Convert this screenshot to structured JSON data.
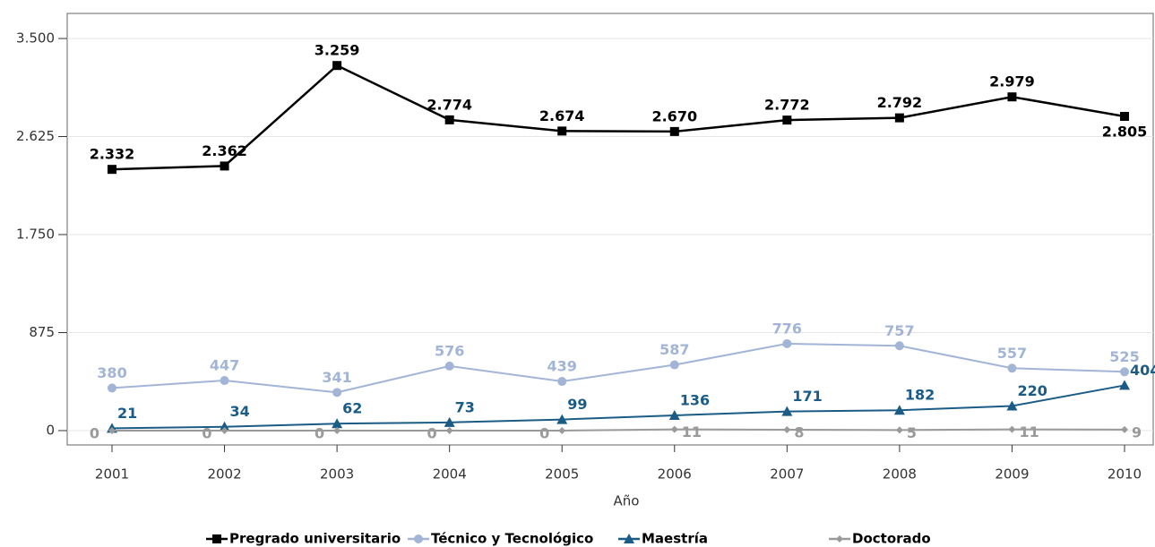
{
  "chart_data": {
    "type": "line",
    "x_label": "Año",
    "categories": [
      "2001",
      "2002",
      "2003",
      "2004",
      "2005",
      "2006",
      "2007",
      "2008",
      "2009",
      "2010"
    ],
    "ylim": [
      -128,
      3724
    ],
    "yticks": [
      0,
      875,
      {
        "value": 1750,
        "label": "1.750"
      },
      {
        "value": 2625,
        "label": "2.625"
      },
      {
        "value": 3500,
        "label": "3.500"
      }
    ],
    "grid": true,
    "series": [
      {
        "name": "Pregrado universitario",
        "color": "#000000",
        "marker": "square",
        "values": [
          2332,
          2362,
          3259,
          2774,
          2674,
          2670,
          2772,
          2792,
          2979,
          2805
        ],
        "value_labels": [
          "2.332",
          "2.362",
          "3.259",
          "2.774",
          "2.674",
          "2.670",
          "2.772",
          "2.792",
          "2.979",
          "2.805"
        ]
      },
      {
        "name": "Técnico y Tecnológico",
        "color": "#a3b5d6",
        "marker": "circle",
        "values": [
          380,
          447,
          341,
          576,
          439,
          587,
          776,
          757,
          557,
          525
        ]
      },
      {
        "name": "Maestría",
        "color": "#1b5c86",
        "marker": "triangle",
        "values": [
          21,
          34,
          62,
          73,
          99,
          136,
          171,
          182,
          220,
          404
        ]
      },
      {
        "name": "Doctorado",
        "color": "#9a9a9a",
        "marker": "diamond",
        "values": [
          0,
          0,
          0,
          0,
          0,
          11,
          8,
          5,
          11,
          9
        ]
      }
    ]
  }
}
